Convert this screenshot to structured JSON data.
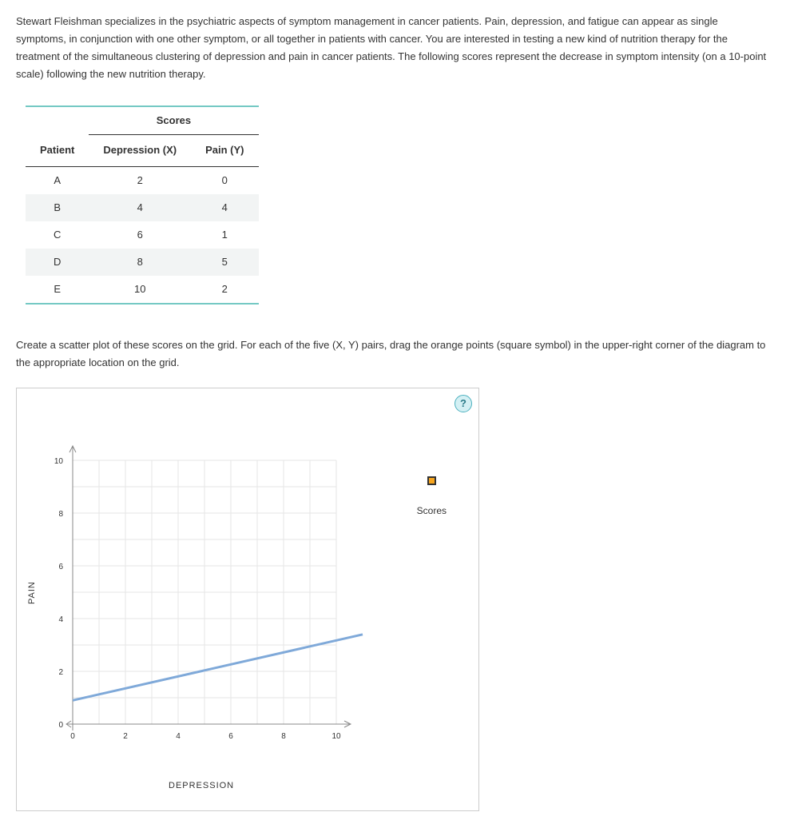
{
  "intro_text": "Stewart Fleishman specializes in the psychiatric aspects of symptom management in cancer patients. Pain, depression, and fatigue can appear as single symptoms, in conjunction with one other symptom, or all together in patients with cancer. You are interested in testing a new kind of nutrition therapy for the treatment of the simultaneous clustering of depression and pain in cancer patients. The following scores represent the decrease in symptom intensity (on a 10-point scale) following the new nutrition therapy.",
  "instruction_text": "Create a scatter plot of these scores on the grid. For each of the five (X, Y) pairs, drag the orange points (square symbol) in the upper-right corner of the diagram to the appropriate location on the grid.",
  "table": {
    "super_header": "Scores",
    "columns": {
      "patient": "Patient",
      "x": "Depression (X)",
      "y": "Pain (Y)"
    },
    "rows": [
      {
        "patient": "A",
        "x": "2",
        "y": "0"
      },
      {
        "patient": "B",
        "x": "4",
        "y": "4"
      },
      {
        "patient": "C",
        "x": "6",
        "y": "1"
      },
      {
        "patient": "D",
        "x": "8",
        "y": "5"
      },
      {
        "patient": "E",
        "x": "10",
        "y": "2"
      }
    ]
  },
  "chart": {
    "type": "scatter",
    "x_label": "DEPRESSION",
    "y_label": "PAIN",
    "xlim": [
      0,
      10
    ],
    "ylim": [
      0,
      10
    ],
    "tick_step": 2,
    "x_ticks": [
      "0",
      "2",
      "4",
      "6",
      "8",
      "10"
    ],
    "y_ticks": [
      "0",
      "2",
      "4",
      "6",
      "8",
      "10"
    ],
    "grid_color": "#e6e6e6",
    "axis_color": "#888888",
    "line_color": "#7fa9d9",
    "line_width": 3,
    "trend_line": {
      "p1": [
        0,
        0.9
      ],
      "p2": [
        11,
        3.4
      ]
    },
    "background_color": "#ffffff",
    "tick_font_size": 10,
    "label_font_size": 11,
    "marker": {
      "fill": "#f7a51e",
      "stroke": "#333333",
      "size": 11
    }
  },
  "legend_label": "Scores",
  "help_label": "?"
}
